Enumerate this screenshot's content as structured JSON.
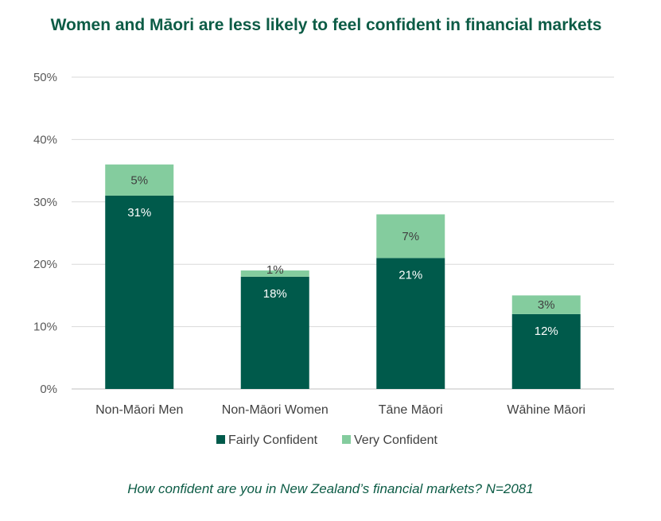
{
  "chart_data": {
    "type": "bar",
    "stacked": true,
    "title": "Women and Māori are less likely to feel confident in financial markets",
    "caption": "How confident are you in New Zealand’s financial markets? N=2081",
    "categories": [
      "Non-Māori Men",
      "Non-Māori Women",
      "Tāne Māori",
      "Wāhine Māori"
    ],
    "series": [
      {
        "name": "Fairly Confident",
        "values": [
          31,
          18,
          21,
          12
        ],
        "labels": [
          "31%",
          "18%",
          "21%",
          "12%"
        ],
        "color": "#005a4b",
        "label_color": "#ffffff"
      },
      {
        "name": "Very Confident",
        "values": [
          5,
          1,
          7,
          3
        ],
        "labels": [
          "5%",
          "1%",
          "7%",
          "3%"
        ],
        "color": "#84cc9e",
        "label_color": "#404040"
      }
    ],
    "ylim": [
      0,
      50
    ],
    "yticks": [
      0,
      10,
      20,
      30,
      40,
      50
    ],
    "ytick_labels": [
      "0%",
      "10%",
      "20%",
      "30%",
      "40%",
      "50%"
    ],
    "grid": true,
    "legend_position": "bottom"
  }
}
